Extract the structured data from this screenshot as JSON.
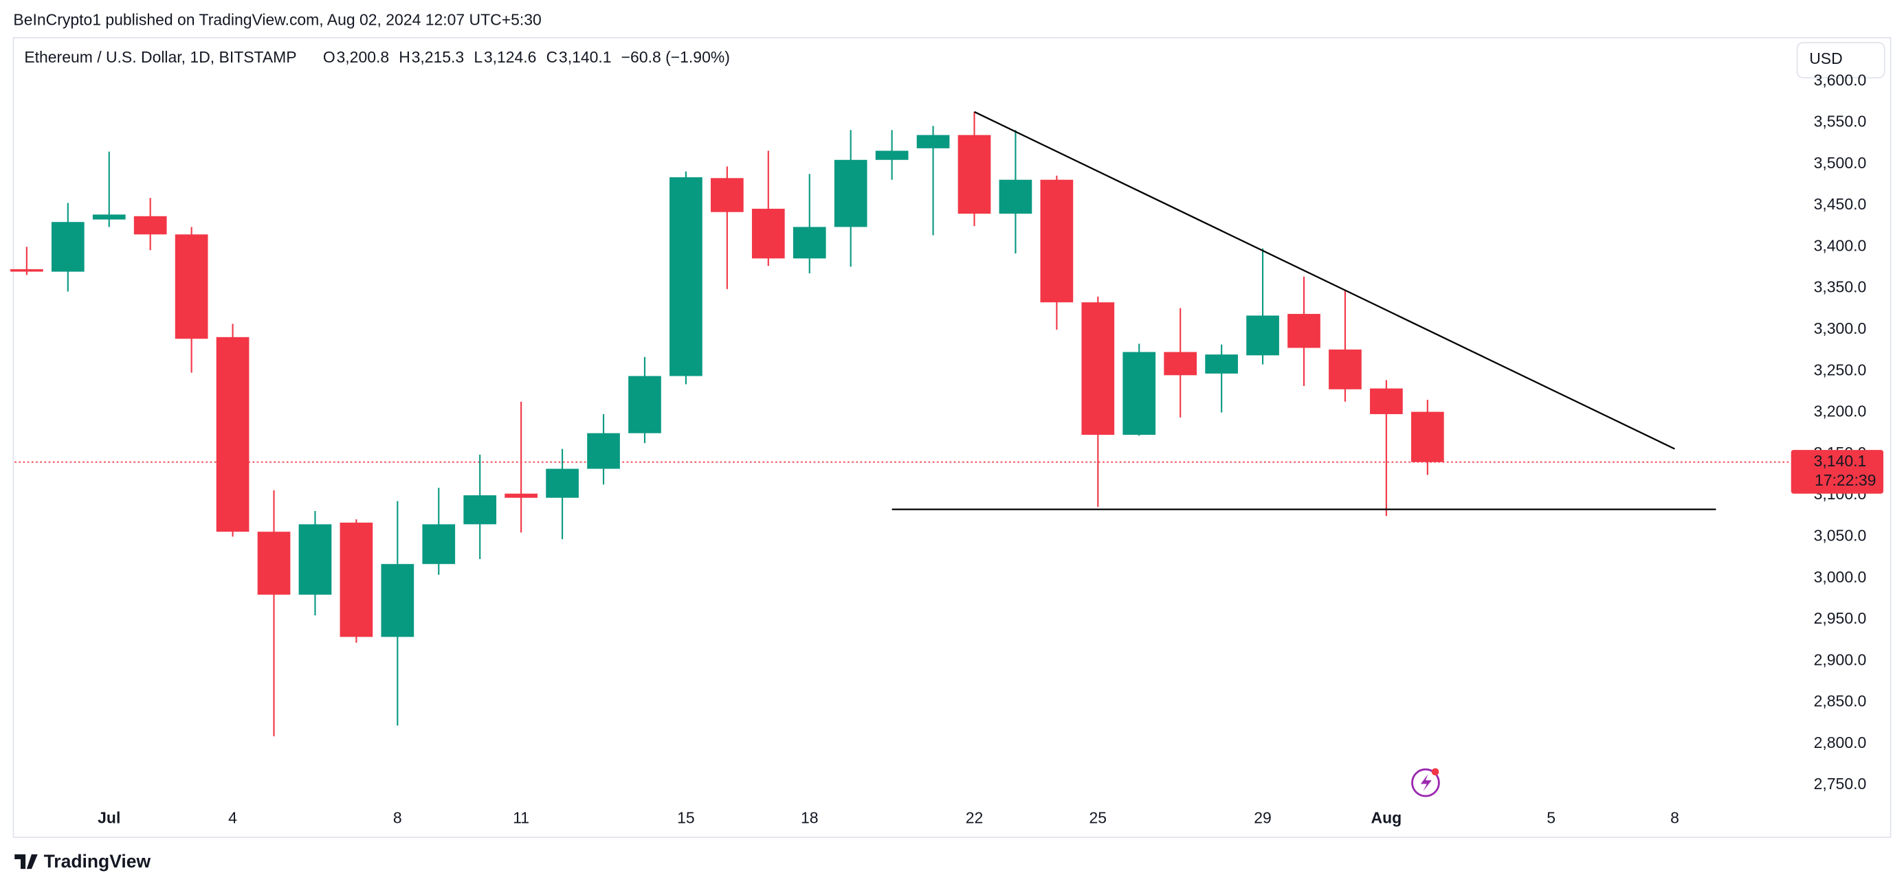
{
  "header": {
    "published": "BeInCrypto1 published on TradingView.com, Aug 02, 2024 12:07 UTC+5:30",
    "symbol": "Ethereum / U.S. Dollar, 1D, BITSTAMP",
    "ohlc": [
      {
        "key": "O",
        "text": "3,200.8"
      },
      {
        "key": "H",
        "text": "3,215.3"
      },
      {
        "key": "L",
        "text": "3,124.6"
      },
      {
        "key": "C",
        "text": "3,140.1"
      }
    ],
    "change": "−60.8 (−1.90%)",
    "currency": "USD"
  },
  "footer": {
    "brand": "TradingView"
  },
  "chart_data": {
    "type": "candlestick",
    "categories": [
      null,
      null,
      "Jul",
      null,
      null,
      "4",
      null,
      null,
      null,
      "8",
      null,
      null,
      "11",
      null,
      null,
      null,
      "15",
      null,
      null,
      "18",
      null,
      null,
      null,
      "22",
      null,
      null,
      "25",
      null,
      null,
      null,
      "29",
      null,
      null,
      "Aug",
      null,
      null,
      null,
      "5",
      null,
      null,
      "8",
      null,
      null
    ],
    "open": [
      3373,
      3370,
      3433,
      3437,
      3415,
      3291,
      3056,
      2980,
      3067,
      2929,
      3017,
      3065,
      3102,
      3097,
      3132,
      3175,
      3244,
      3483,
      3446,
      3386,
      3424,
      3505,
      3519,
      3535,
      3440,
      3481,
      3333,
      3173,
      3273,
      3247,
      3269,
      3319,
      3276,
      3229,
      3200.8,
      null,
      null,
      null,
      null,
      null,
      null,
      null,
      null
    ],
    "high": [
      3400,
      3453,
      3515,
      3459,
      3424,
      3307,
      3106,
      3081,
      3071,
      3093,
      3109,
      3149,
      3213,
      3156,
      3198,
      3267,
      3491,
      3497,
      3516,
      3488,
      3541,
      3541,
      3546,
      3563,
      3541,
      3486,
      3340,
      3283,
      3326,
      3282,
      3398,
      3364,
      3348,
      3239,
      3215.3,
      null,
      null,
      null,
      null,
      null,
      null,
      null,
      null
    ],
    "low": [
      3366,
      3346,
      3424,
      3396,
      3248,
      3050,
      2809,
      2955,
      2922,
      2822,
      3004,
      3023,
      3055,
      3047,
      3113,
      3163,
      3234,
      3349,
      3377,
      3368,
      3376,
      3481,
      3414,
      3425,
      3392,
      3300,
      3086,
      3172,
      3194,
      3200,
      3258,
      3232,
      3213,
      3075,
      3124.6,
      null,
      null,
      null,
      null,
      null,
      null,
      null,
      null
    ],
    "close": [
      3371,
      3430,
      3439,
      3415,
      3289,
      3056,
      2980,
      3065,
      2929,
      3017,
      3065,
      3100,
      3097,
      3132,
      3175,
      3244,
      3484,
      3442,
      3386,
      3424,
      3505,
      3516,
      3535,
      3440,
      3481,
      3333,
      3173,
      3273,
      3245,
      3270,
      3317,
      3278,
      3228,
      3198,
      3140.1,
      null,
      null,
      null,
      null,
      null,
      null,
      null,
      null
    ],
    "up_color": "#089981",
    "down_color": "#f23645",
    "ylim": [
      2687,
      3651
    ],
    "yticks": [
      {
        "value": 2750,
        "label": "2,750.0"
      },
      {
        "value": 2800,
        "label": "2,800.0"
      },
      {
        "value": 2850,
        "label": "2,850.0"
      },
      {
        "value": 2900,
        "label": "2,900.0"
      },
      {
        "value": 2950,
        "label": "2,950.0"
      },
      {
        "value": 3000,
        "label": "3,000.0"
      },
      {
        "value": 3050,
        "label": "3,050.0"
      },
      {
        "value": 3100,
        "label": "3,100.0"
      },
      {
        "value": 3150,
        "label": "3,150.0"
      },
      {
        "value": 3200,
        "label": "3,200.0"
      },
      {
        "value": 3250,
        "label": "3,250.0"
      },
      {
        "value": 3300,
        "label": "3,300.0"
      },
      {
        "value": 3350,
        "label": "3,350.0"
      },
      {
        "value": 3400,
        "label": "3,400.0"
      },
      {
        "value": 3450,
        "label": "3,450.0"
      },
      {
        "value": 3500,
        "label": "3,500.0"
      },
      {
        "value": 3550,
        "label": "3,550.0"
      },
      {
        "value": 3600,
        "label": "3,600.0"
      }
    ],
    "last_price": {
      "value": 3140.1,
      "label": "3,140.1",
      "countdown": "17:22:39"
    },
    "trendlines": [
      {
        "x0": 23,
        "y0": 3563,
        "x1": 40,
        "y1": 3156
      },
      {
        "x0": 21,
        "y0": 3083,
        "x1": 41,
        "y1": 3083
      }
    ]
  }
}
